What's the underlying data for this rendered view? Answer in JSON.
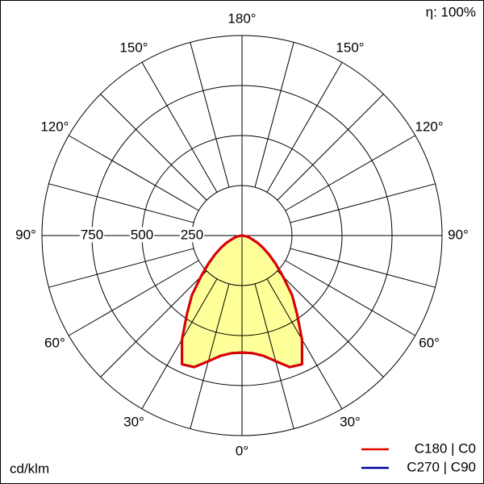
{
  "chart_data": {
    "type": "polar",
    "efficiency_label": "η: 100%",
    "unit_label": "cd/klm",
    "rlim": [
      0,
      1000
    ],
    "rticks": [
      250,
      500,
      750
    ],
    "theta_grid": [
      0,
      15,
      30,
      45,
      60,
      75,
      90,
      105,
      120,
      135,
      150,
      165,
      180
    ],
    "thetaticks": [
      {
        "value": 0,
        "label": "0°"
      },
      {
        "value": 30,
        "label": "30°"
      },
      {
        "value": 60,
        "label": "60°"
      },
      {
        "value": 90,
        "label": "90°"
      },
      {
        "value": 120,
        "label": "120°"
      },
      {
        "value": 150,
        "label": "150°"
      },
      {
        "value": 180,
        "label": "180°"
      }
    ],
    "x": [
      0,
      5,
      10,
      15,
      20,
      25,
      30,
      35,
      40,
      45,
      50,
      55,
      60,
      65,
      70,
      75,
      80,
      85,
      90
    ],
    "series": [
      {
        "name": "C270 | C90",
        "color": "#0000a0",
        "values": [
          585,
          590,
          610,
          650,
          700,
          710,
          600,
          480,
          390,
          290,
          220,
          165,
          120,
          85,
          55,
          35,
          20,
          8,
          0
        ]
      },
      {
        "name": "C180 | C0",
        "color": "#e00000",
        "fill": "#ffff99",
        "values": [
          585,
          590,
          610,
          650,
          700,
          710,
          600,
          480,
          390,
          290,
          220,
          165,
          120,
          85,
          55,
          35,
          20,
          8,
          0
        ]
      }
    ]
  }
}
